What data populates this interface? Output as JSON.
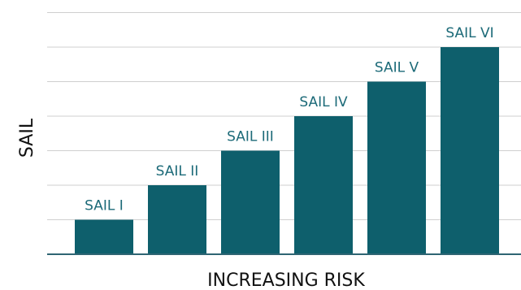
{
  "chart_data": {
    "type": "bar",
    "title": "",
    "xlabel": "INCREASING RISK",
    "ylabel": "SAIL",
    "categories": [
      "SAIL I",
      "SAIL II",
      "SAIL III",
      "SAIL IV",
      "SAIL V",
      "SAIL VI"
    ],
    "values": [
      1,
      2,
      3,
      4,
      5,
      6
    ],
    "ylim": [
      0,
      7
    ],
    "grid": true,
    "legend": "none",
    "colors": {
      "bar": "#0e5f6c",
      "label": "#1c6a78",
      "grid": "#cfcfcf",
      "axis": "#2f6573"
    }
  }
}
